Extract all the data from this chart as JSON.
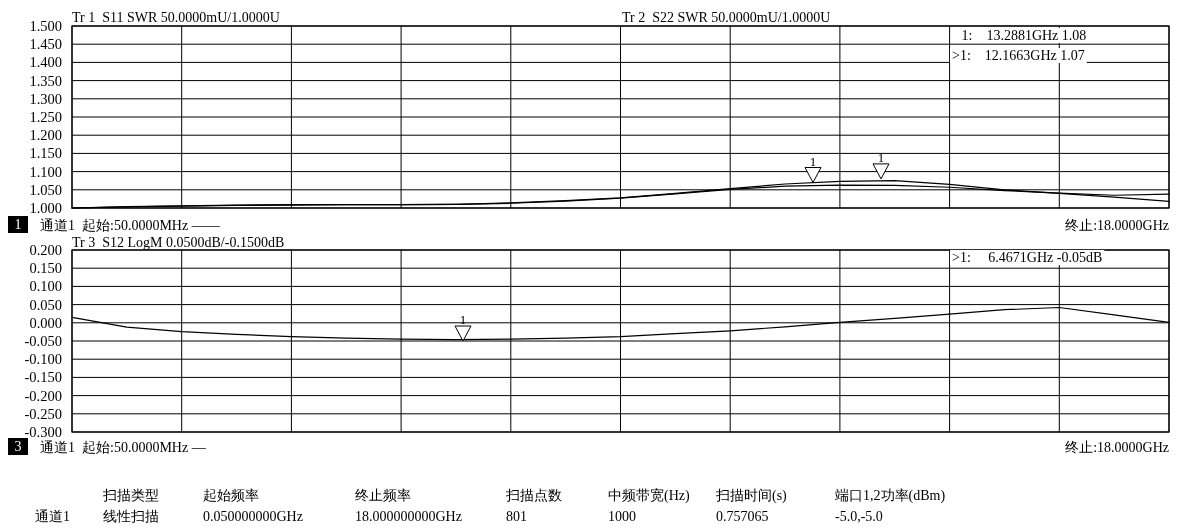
{
  "chart_data": [
    {
      "type": "line",
      "categories": [
        null,
        null,
        null,
        null,
        null,
        null,
        null,
        null,
        null,
        null,
        null,
        null,
        null,
        null,
        null,
        null,
        null,
        null,
        null,
        null,
        null
      ],
      "series": [
        {
          "color": "#000000",
          "values": [
            1.0,
            1.004,
            1.006,
            1.008,
            1.009,
            1.009,
            1.009,
            1.01,
            1.014,
            1.02,
            1.028,
            1.04,
            1.053,
            1.066,
            1.073,
            1.075,
            1.065,
            1.05,
            1.04,
            1.03,
            1.018
          ]
        },
        {
          "color": "#000000",
          "values": [
            1.0,
            1.003,
            1.005,
            1.007,
            1.008,
            1.009,
            1.009,
            1.01,
            1.013,
            1.019,
            1.027,
            1.039,
            1.051,
            1.06,
            1.063,
            1.062,
            1.057,
            1.048,
            1.041,
            1.035,
            1.038
          ]
        }
      ],
      "ylim": [
        1.0,
        1.5
      ],
      "yticks": [
        {
          "value": 1.0,
          "label": "1.000"
        },
        {
          "value": 1.05,
          "label": "1.050"
        },
        {
          "value": 1.1,
          "label": "1.100"
        },
        {
          "value": 1.15,
          "label": "1.150"
        },
        {
          "value": 1.2,
          "label": "1.200"
        },
        {
          "value": 1.25,
          "label": "1.250"
        },
        {
          "value": 1.3,
          "label": "1.300"
        },
        {
          "value": 1.35,
          "label": "1.350"
        },
        {
          "value": 1.4,
          "label": "1.400"
        },
        {
          "value": 1.45,
          "label": "1.450"
        },
        {
          "value": 1.5,
          "label": "1.500"
        }
      ],
      "tick_labels": "y",
      "grid": true,
      "annotations": [
        "Tr 1  S11 SWR 50.0000mU/1.0000U",
        "Tr 2  S22 SWR 50.0000mU/1.0000U",
        " 1:    13.2881GHz 1.08",
        ">1:    12.1663GHz 1.07",
        "1",
        "通道1  起始:50.0000MHz ——",
        "终止:18.0000GHz",
        {
          "text": "1",
          "y": 1.07
        },
        {
          "text": "1",
          "y": 1.08
        }
      ]
    },
    {
      "type": "line",
      "categories": [
        null,
        null,
        null,
        null,
        null,
        null,
        null,
        null,
        null,
        null,
        null,
        null,
        null,
        null,
        null,
        null,
        null,
        null,
        null,
        null,
        null
      ],
      "series": [
        {
          "color": "#000000",
          "values": [
            0.015,
            -0.012,
            -0.024,
            -0.032,
            -0.038,
            -0.042,
            -0.045,
            -0.046,
            -0.045,
            -0.042,
            -0.038,
            -0.03,
            -0.022,
            -0.011,
            0.001,
            0.012,
            0.024,
            0.036,
            0.042,
            0.022,
            0.001
          ]
        }
      ],
      "ylim": [
        -0.3,
        0.2
      ],
      "yticks": [
        {
          "value": -0.3,
          "label": "-0.300"
        },
        {
          "value": -0.25,
          "label": "-0.250"
        },
        {
          "value": -0.2,
          "label": "-0.200"
        },
        {
          "value": -0.15,
          "label": "-0.150"
        },
        {
          "value": -0.1,
          "label": "-0.100"
        },
        {
          "value": -0.05,
          "label": "-0.050"
        },
        {
          "value": 0.0,
          "label": "0.000"
        },
        {
          "value": 0.05,
          "label": "0.050"
        },
        {
          "value": 0.1,
          "label": "0.100"
        },
        {
          "value": 0.15,
          "label": "0.150"
        },
        {
          "value": 0.2,
          "label": "0.200"
        }
      ],
      "tick_labels": "y",
      "grid": true,
      "annotations": [
        "Tr 3  S12 LogM 0.0500dB/-0.1500dB",
        ">1:     6.4671GHz -0.05dB",
        "3",
        "通道1  起始:50.0000MHz —",
        "终止:18.0000GHz",
        {
          "text": "1",
          "y": -0.05
        }
      ]
    },
    {
      "type": "other",
      "annotations": [
        "扫描类型",
        "起始频率",
        "终止频率",
        "扫描点数",
        "中频带宽(Hz)",
        "扫描时间(s)",
        "端口1,2功率(dBm)",
        "通道1",
        "线性扫描",
        "0.050000000GHz",
        "18.000000000GHz",
        "801",
        "1000",
        "0.757065",
        "-5.0,-5.0"
      ]
    }
  ]
}
